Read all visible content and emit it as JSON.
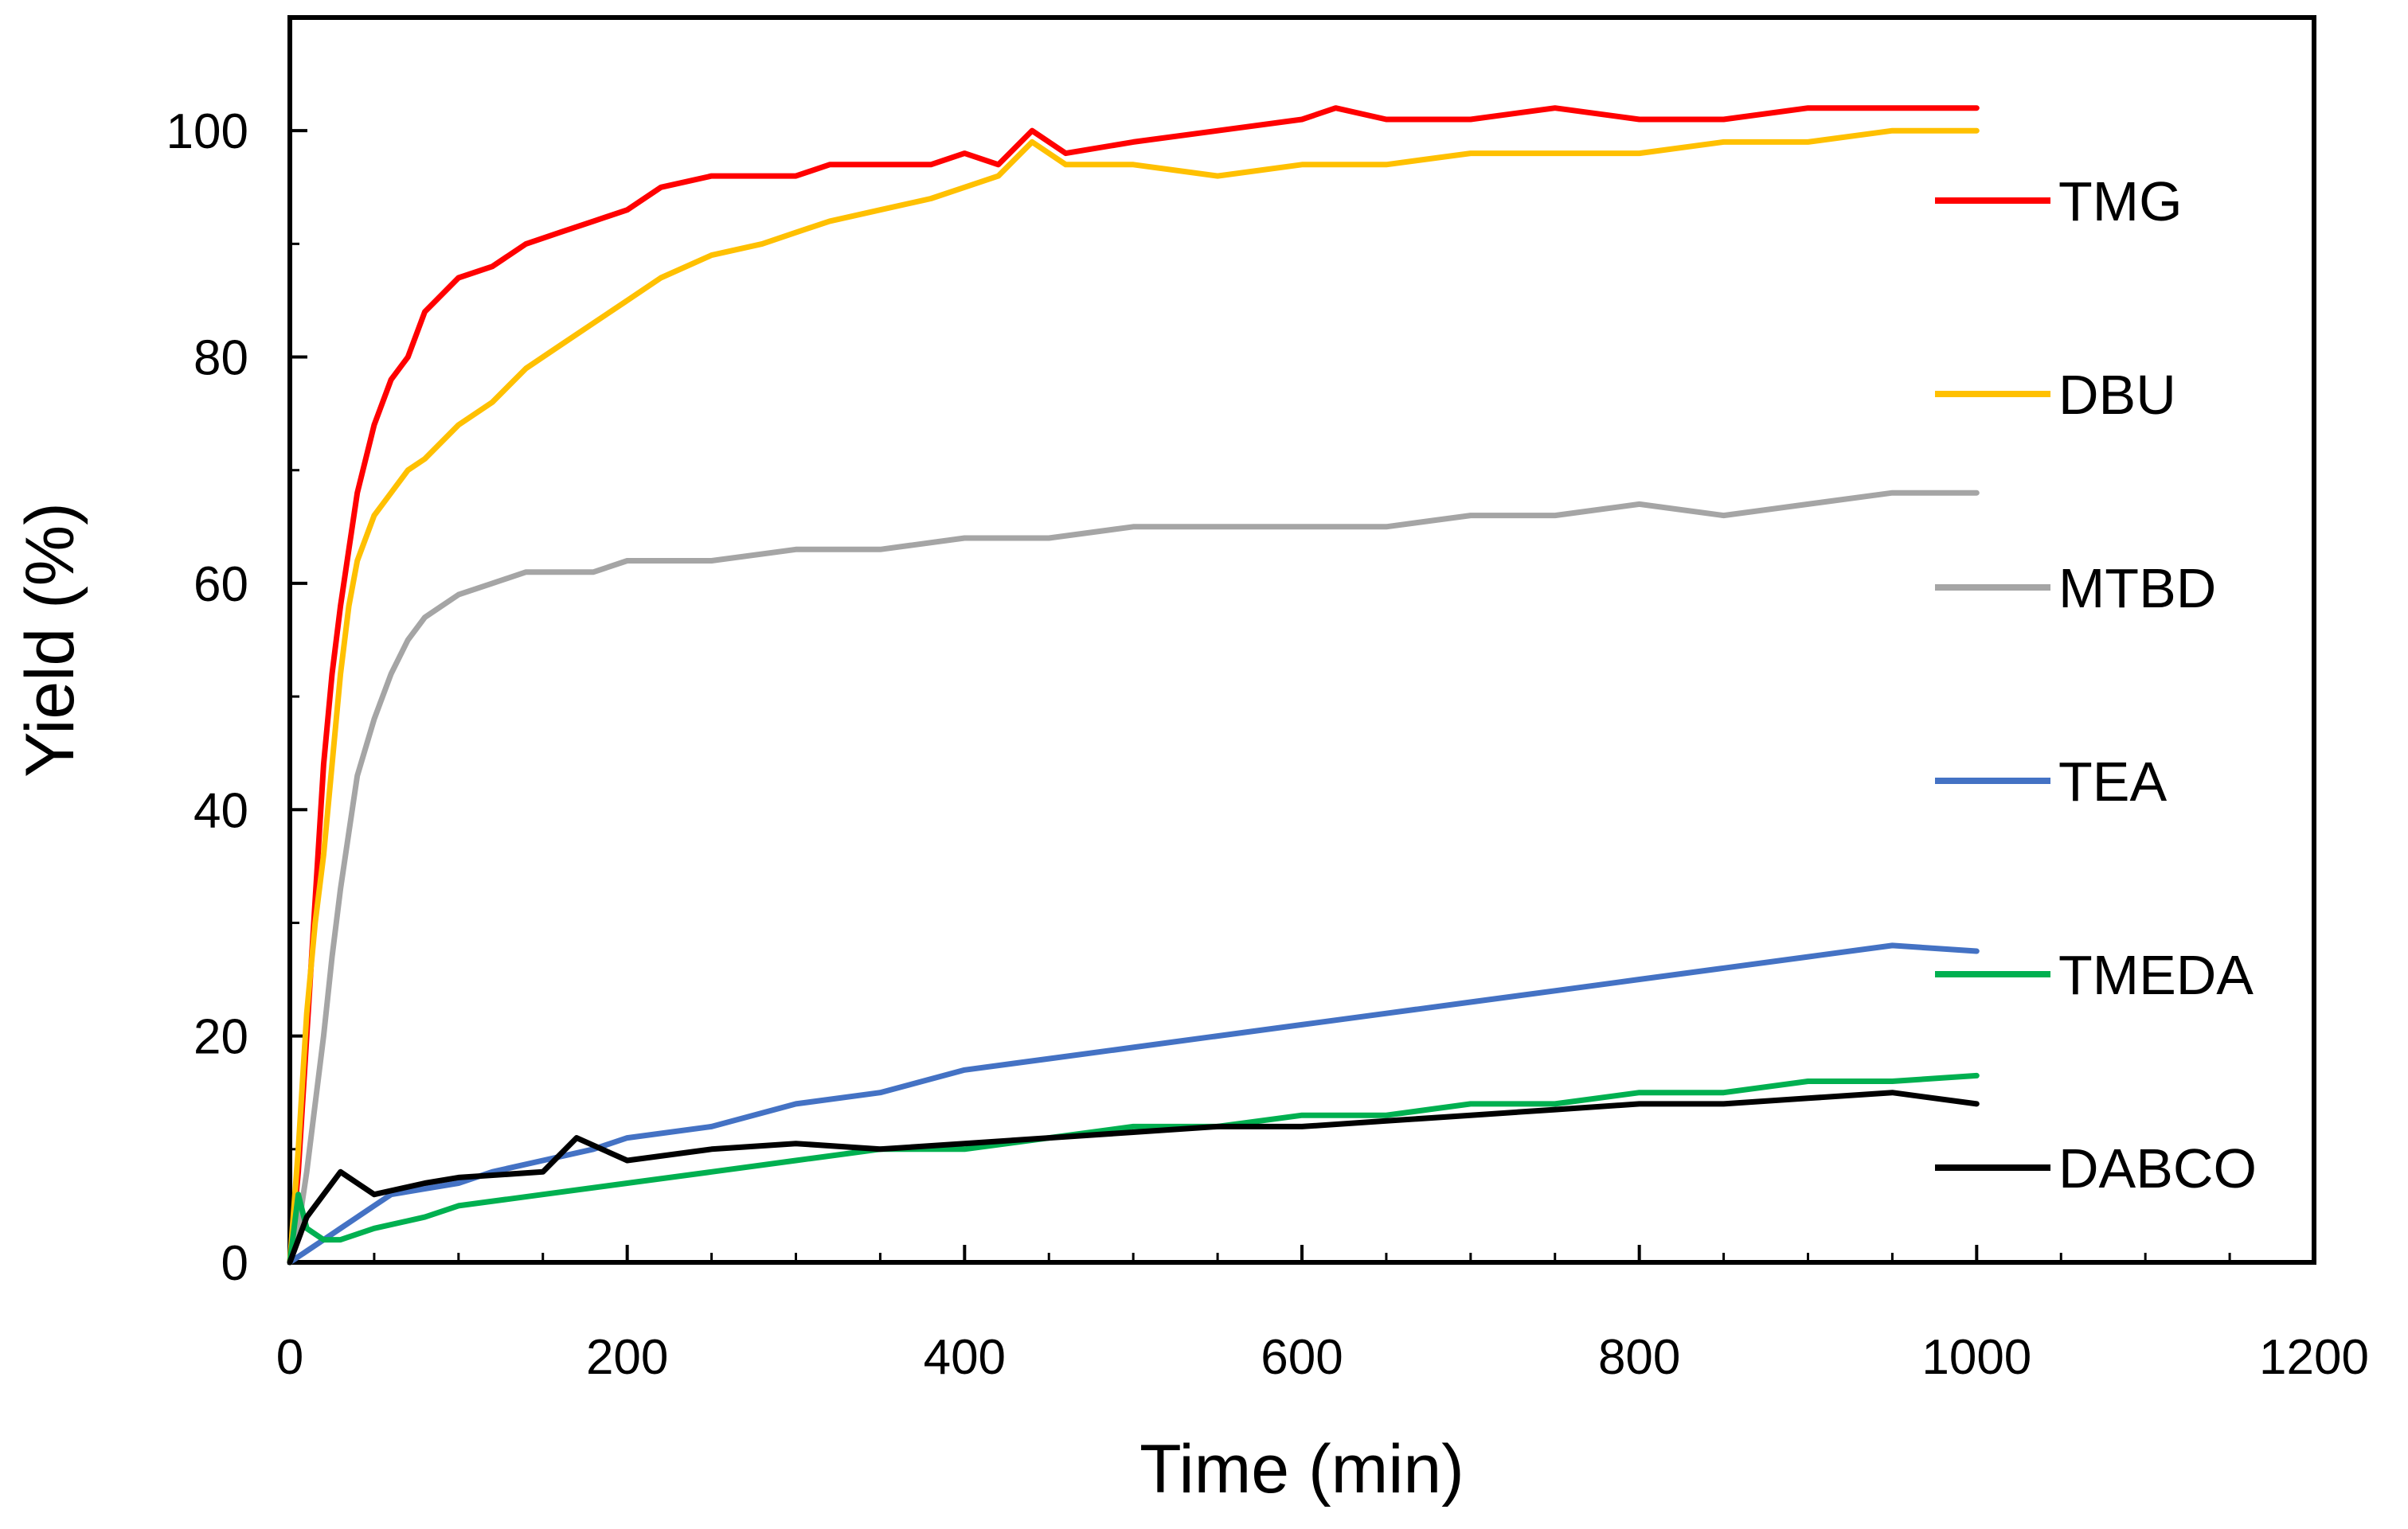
{
  "chart_data": {
    "type": "line",
    "title": "",
    "xlabel": "Time (min)",
    "ylabel": "Yield (%)",
    "xlim": [
      0,
      1200
    ],
    "ylim": [
      0,
      110
    ],
    "xticks": [
      "0",
      "200",
      "400",
      "600",
      "800",
      "1000",
      "1200"
    ],
    "yticks": [
      "0",
      "20",
      "40",
      "60",
      "80",
      "100"
    ],
    "grid": false,
    "legend_position": "right",
    "series": [
      {
        "name": "TMG",
        "color": "#ff0000",
        "x": [
          0,
          5,
          10,
          15,
          20,
          25,
          30,
          35,
          40,
          50,
          60,
          70,
          80,
          100,
          120,
          140,
          160,
          180,
          200,
          220,
          250,
          280,
          300,
          320,
          350,
          380,
          400,
          420,
          440,
          460,
          500,
          550,
          600,
          620,
          650,
          700,
          750,
          800,
          850,
          900,
          950,
          1000
        ],
        "y": [
          0,
          8,
          20,
          32,
          44,
          52,
          58,
          63,
          68,
          74,
          78,
          80,
          84,
          87,
          88,
          90,
          91,
          92,
          93,
          95,
          96,
          96,
          96,
          97,
          97,
          97,
          98,
          97,
          100,
          98,
          99,
          100,
          101,
          102,
          101,
          101,
          102,
          101,
          101,
          102,
          102,
          102
        ]
      },
      {
        "name": "DBU",
        "color": "#ffc000",
        "x": [
          0,
          5,
          10,
          15,
          20,
          25,
          30,
          35,
          40,
          50,
          60,
          70,
          80,
          100,
          120,
          140,
          160,
          180,
          200,
          220,
          250,
          280,
          300,
          320,
          350,
          380,
          400,
          420,
          440,
          460,
          500,
          550,
          600,
          650,
          700,
          750,
          800,
          850,
          900,
          950,
          1000
        ],
        "y": [
          0,
          10,
          22,
          30,
          36,
          44,
          52,
          58,
          62,
          66,
          68,
          70,
          71,
          74,
          76,
          79,
          81,
          83,
          85,
          87,
          89,
          90,
          91,
          92,
          93,
          94,
          95,
          96,
          99,
          97,
          97,
          96,
          97,
          97,
          98,
          98,
          98,
          99,
          99,
          100,
          100
        ]
      },
      {
        "name": "MTBD",
        "color": "#a5a5a5",
        "x": [
          0,
          5,
          10,
          15,
          20,
          25,
          30,
          35,
          40,
          50,
          60,
          70,
          80,
          100,
          120,
          140,
          160,
          180,
          200,
          250,
          300,
          350,
          400,
          450,
          500,
          550,
          600,
          650,
          700,
          750,
          800,
          850,
          900,
          950,
          1000
        ],
        "y": [
          0,
          3,
          8,
          14,
          20,
          27,
          33,
          38,
          43,
          48,
          52,
          55,
          57,
          59,
          60,
          61,
          61,
          61,
          62,
          62,
          63,
          63,
          64,
          64,
          65,
          65,
          65,
          65,
          66,
          66,
          67,
          66,
          67,
          68,
          68
        ]
      },
      {
        "name": "TEA",
        "color": "#4472c4",
        "x": [
          0,
          10,
          20,
          30,
          40,
          50,
          60,
          80,
          100,
          120,
          150,
          180,
          200,
          250,
          300,
          350,
          400,
          450,
          500,
          550,
          600,
          650,
          700,
          750,
          800,
          850,
          900,
          950,
          1000
        ],
        "y": [
          0,
          1,
          2,
          3,
          4,
          5,
          6,
          6.5,
          7,
          8,
          9,
          10,
          11,
          12,
          14,
          15,
          17,
          18,
          19,
          20,
          21,
          22,
          23,
          24,
          25,
          26,
          27,
          28,
          27.5
        ]
      },
      {
        "name": "TMEDA",
        "color": "#00b050",
        "x": [
          0,
          5,
          10,
          20,
          30,
          50,
          80,
          100,
          150,
          200,
          250,
          300,
          350,
          400,
          450,
          500,
          550,
          600,
          650,
          700,
          750,
          800,
          850,
          900,
          950,
          1000
        ],
        "y": [
          0,
          6,
          3,
          2,
          2,
          3,
          4,
          5,
          6,
          7,
          8,
          9,
          10,
          10,
          11,
          12,
          12,
          13,
          13,
          14,
          14,
          15,
          15,
          16,
          16,
          16.5
        ]
      },
      {
        "name": "DABCO",
        "color": "#000000",
        "x": [
          0,
          5,
          10,
          20,
          30,
          40,
          50,
          80,
          100,
          150,
          170,
          200,
          250,
          300,
          350,
          400,
          450,
          500,
          550,
          600,
          650,
          700,
          750,
          800,
          850,
          900,
          950,
          1000
        ],
        "y": [
          0,
          2,
          4,
          6,
          8,
          7,
          6,
          7,
          7.5,
          8,
          11,
          9,
          10,
          10.5,
          10,
          10.5,
          11,
          11.5,
          12,
          12,
          12.5,
          13,
          13.5,
          14,
          14,
          14.5,
          15,
          14
        ]
      }
    ]
  }
}
